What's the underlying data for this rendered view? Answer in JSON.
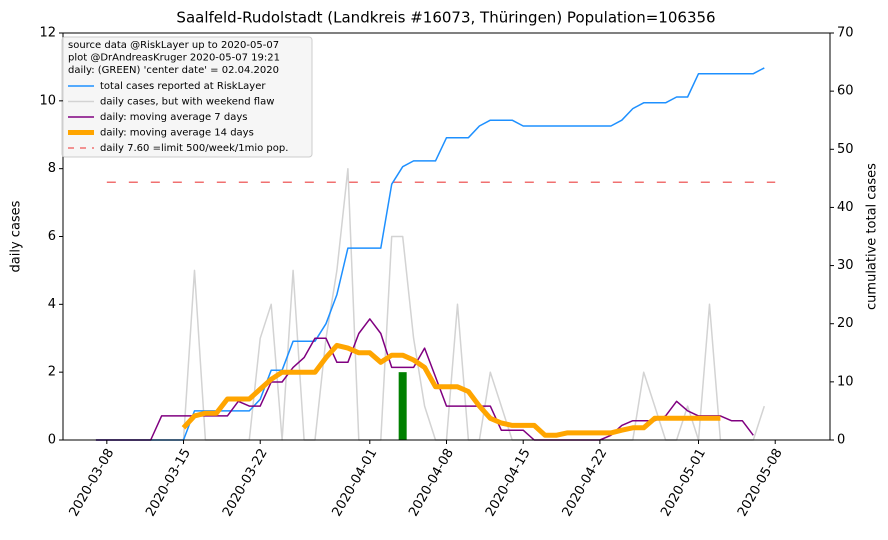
{
  "chart_data": {
    "type": "line",
    "title": "Saalfeld-Rudolstadt (Landkreis #16073, Thüringen) Population=106356",
    "ylabel": "daily cases",
    "ylabel_color": "purple",
    "y2label": "cumulative total cases",
    "y2label_color": "#1e90ff",
    "xlim": [
      "2020-03-04",
      "2020-05-13"
    ],
    "xticks": [
      "2020-03-08",
      "2020-03-15",
      "2020-03-22",
      "2020-04-01",
      "2020-04-08",
      "2020-04-15",
      "2020-04-22",
      "2020-05-01",
      "2020-05-08"
    ],
    "ylim": [
      0,
      12
    ],
    "yticks": [
      0,
      2,
      4,
      6,
      8,
      10,
      12
    ],
    "y2lim": [
      0,
      70
    ],
    "y2ticks": [
      0,
      10,
      20,
      30,
      40,
      50,
      60,
      70
    ],
    "legend": "upper left",
    "legend_title": [
      "source data @RiskLayer up to 2020-05-07",
      "plot @DrAndreasKruger 2020-05-07 19:21",
      "daily: (GREEN) 'center date' = 02.04.2020"
    ],
    "x": [
      "2020-03-07",
      "2020-03-08",
      "2020-03-09",
      "2020-03-10",
      "2020-03-11",
      "2020-03-12",
      "2020-03-13",
      "2020-03-14",
      "2020-03-15",
      "2020-03-16",
      "2020-03-17",
      "2020-03-18",
      "2020-03-19",
      "2020-03-20",
      "2020-03-21",
      "2020-03-22",
      "2020-03-23",
      "2020-03-24",
      "2020-03-25",
      "2020-03-26",
      "2020-03-27",
      "2020-03-28",
      "2020-03-29",
      "2020-03-30",
      "2020-03-31",
      "2020-04-01",
      "2020-04-02",
      "2020-04-03",
      "2020-04-04",
      "2020-04-05",
      "2020-04-06",
      "2020-04-07",
      "2020-04-08",
      "2020-04-09",
      "2020-04-10",
      "2020-04-11",
      "2020-04-12",
      "2020-04-13",
      "2020-04-14",
      "2020-04-15",
      "2020-04-16",
      "2020-04-17",
      "2020-04-18",
      "2020-04-19",
      "2020-04-20",
      "2020-04-21",
      "2020-04-22",
      "2020-04-23",
      "2020-04-24",
      "2020-04-25",
      "2020-04-26",
      "2020-04-27",
      "2020-04-28",
      "2020-04-29",
      "2020-04-30",
      "2020-05-01",
      "2020-05-02",
      "2020-05-03",
      "2020-05-04",
      "2020-05-05",
      "2020-05-06",
      "2020-05-07"
    ],
    "series": [
      {
        "name": "total cases reported at RiskLayer",
        "color": "#1e90ff",
        "linewidth": 1.5,
        "axis": "y2",
        "values": [
          0,
          0,
          0,
          0,
          0,
          0,
          0,
          0,
          0,
          5,
          5,
          5,
          5,
          5,
          5,
          7,
          12,
          12,
          17,
          17,
          17,
          20,
          25,
          33,
          33,
          33,
          33,
          44,
          47,
          48,
          48,
          48,
          52,
          52,
          52,
          54,
          55,
          55,
          55,
          54,
          54,
          54,
          54,
          54,
          54,
          54,
          54,
          54,
          55,
          57,
          58,
          58,
          58,
          59,
          59,
          63,
          63,
          63,
          63,
          63,
          63,
          64
        ]
      },
      {
        "name": "daily cases, but with weekend flaw",
        "color": "#d3d3d3",
        "linewidth": 1.5,
        "values": [
          0,
          0,
          0,
          0,
          0,
          0,
          0,
          0,
          0,
          5,
          0,
          0,
          0,
          0,
          0,
          3,
          4,
          0,
          5,
          0,
          0,
          3,
          5,
          8,
          0,
          0,
          0,
          6,
          6,
          3,
          1,
          0,
          0,
          4,
          0,
          0,
          2,
          1,
          0,
          0,
          0,
          0,
          0,
          0,
          0,
          0,
          0,
          0,
          0,
          0,
          2,
          1,
          0,
          0,
          1,
          0,
          4,
          0,
          0,
          0,
          0,
          1
        ]
      },
      {
        "name": "daily: moving average 7 days",
        "color": "purple",
        "linewidth": 1.5,
        "values": [
          0,
          0,
          0,
          0,
          0,
          0,
          0.71,
          0.71,
          0.71,
          0.71,
          0.71,
          0.71,
          0.71,
          1.14,
          1.0,
          1.0,
          1.71,
          1.71,
          2.14,
          2.43,
          3.0,
          3.0,
          2.29,
          2.29,
          3.14,
          3.57,
          3.14,
          2.14,
          2.14,
          2.14,
          2.71,
          1.86,
          1.0,
          1.0,
          1.0,
          1.0,
          1.0,
          0.29,
          0.29,
          0.29,
          0,
          0,
          0,
          0,
          0,
          0,
          0,
          0.14,
          0.43,
          0.57,
          0.57,
          0.57,
          0.71,
          1.14,
          0.86,
          0.71,
          0.71,
          0.71,
          0.57,
          0.57,
          0.14,
          null
        ]
      },
      {
        "name": "daily: moving average 14 days",
        "color": "orange",
        "linewidth": 5,
        "values": [
          null,
          null,
          null,
          null,
          null,
          null,
          null,
          null,
          0.36,
          0.71,
          0.79,
          0.79,
          1.21,
          1.21,
          1.21,
          1.5,
          1.79,
          2.0,
          2.0,
          2.0,
          2.0,
          2.43,
          2.79,
          2.71,
          2.57,
          2.57,
          2.29,
          2.5,
          2.5,
          2.36,
          2.14,
          1.57,
          1.57,
          1.57,
          1.43,
          1.0,
          0.64,
          0.5,
          0.43,
          0.43,
          0.43,
          0.14,
          0.14,
          0.21,
          0.21,
          0.21,
          0.21,
          0.21,
          0.29,
          0.36,
          0.36,
          0.64,
          0.64,
          0.64,
          0.64,
          0.64,
          0.64,
          0.64,
          null,
          null,
          null,
          null
        ]
      }
    ],
    "reference_line": {
      "name": "daily 7.60 =limit 500/week/1mio pop.",
      "color": "#f07070",
      "value": 7.6,
      "x": [
        "2020-03-08",
        "2020-05-08"
      ]
    },
    "bar": {
      "x": "2020-04-04",
      "value": 2,
      "color": "green"
    }
  }
}
